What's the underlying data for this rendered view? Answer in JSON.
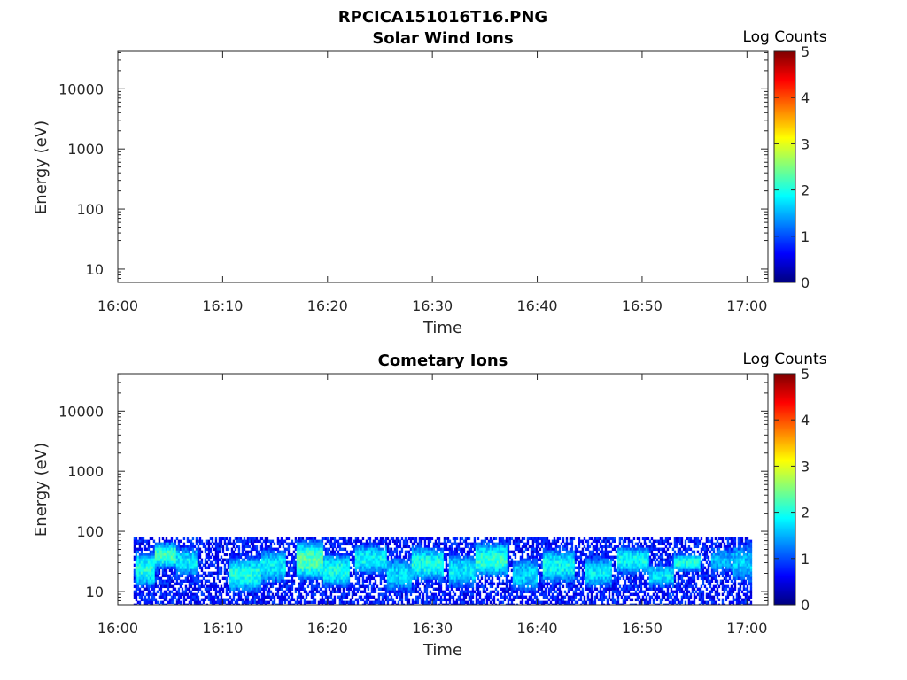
{
  "figure": {
    "filename_title": "RPCICA151016T16.PNG"
  },
  "colormap": {
    "name": "jet",
    "stops": [
      "#00007f",
      "#0000ff",
      "#007fff",
      "#00ffff",
      "#7fff7f",
      "#ffff00",
      "#ff7f00",
      "#ff0000",
      "#7f0000"
    ]
  },
  "chart_data": [
    {
      "type": "heatmap",
      "title": "Solar Wind Ions",
      "xlabel": "Time",
      "ylabel": "Energy (eV)",
      "x_ticks": [
        "16:00",
        "16:10",
        "16:20",
        "16:30",
        "16:40",
        "16:50",
        "17:00"
      ],
      "xlim_minutes": [
        0,
        62
      ],
      "y_scale": "log",
      "y_ticks": [
        "10",
        "100",
        "1000",
        "10000"
      ],
      "ylim": [
        6,
        42000
      ],
      "colorbar": {
        "label": "Log Counts",
        "ticks": [
          "0",
          "1",
          "2",
          "3",
          "4",
          "5"
        ],
        "range": [
          0,
          5
        ]
      },
      "data_present": false,
      "bands": []
    },
    {
      "type": "heatmap",
      "title": "Cometary Ions",
      "xlabel": "Time",
      "ylabel": "Energy (eV)",
      "x_ticks": [
        "16:00",
        "16:10",
        "16:20",
        "16:30",
        "16:40",
        "16:50",
        "17:00"
      ],
      "xlim_minutes": [
        0,
        62
      ],
      "y_scale": "log",
      "y_ticks": [
        "10",
        "100",
        "1000",
        "10000"
      ],
      "ylim": [
        6,
        42000
      ],
      "colorbar": {
        "label": "Log Counts",
        "ticks": [
          "0",
          "1",
          "2",
          "3",
          "4",
          "5"
        ],
        "range": [
          0,
          5
        ]
      },
      "data_present": true,
      "data_time_range_minutes": [
        1.5,
        60.3
      ],
      "data_energy_range_ev": [
        6,
        80
      ],
      "bands": [
        {
          "t": [
            1.5,
            3.5
          ],
          "emin": 12,
          "emax": 50,
          "log_counts": 2.0
        },
        {
          "t": [
            3.5,
            5.5
          ],
          "emin": 25,
          "emax": 70,
          "log_counts": 2.2
        },
        {
          "t": [
            5.5,
            7.5
          ],
          "emin": 18,
          "emax": 60,
          "log_counts": 1.8
        },
        {
          "t": [
            10.5,
            13.5
          ],
          "emin": 10,
          "emax": 40,
          "log_counts": 2.0
        },
        {
          "t": [
            13.5,
            16.0
          ],
          "emin": 14,
          "emax": 55,
          "log_counts": 1.8
        },
        {
          "t": [
            17.0,
            19.5
          ],
          "emin": 16,
          "emax": 75,
          "log_counts": 2.3
        },
        {
          "t": [
            19.5,
            22.0
          ],
          "emin": 12,
          "emax": 45,
          "log_counts": 2.0
        },
        {
          "t": [
            22.5,
            25.5
          ],
          "emin": 20,
          "emax": 65,
          "log_counts": 1.9
        },
        {
          "t": [
            25.5,
            28.0
          ],
          "emin": 10,
          "emax": 40,
          "log_counts": 1.7
        },
        {
          "t": [
            28.0,
            31.0
          ],
          "emin": 15,
          "emax": 60,
          "log_counts": 2.0
        },
        {
          "t": [
            31.5,
            34.0
          ],
          "emin": 12,
          "emax": 45,
          "log_counts": 1.8
        },
        {
          "t": [
            34.0,
            37.0
          ],
          "emin": 18,
          "emax": 70,
          "log_counts": 2.1
        },
        {
          "t": [
            37.5,
            40.0
          ],
          "emin": 10,
          "emax": 40,
          "log_counts": 1.7
        },
        {
          "t": [
            40.5,
            43.5
          ],
          "emin": 14,
          "emax": 55,
          "log_counts": 1.9
        },
        {
          "t": [
            44.5,
            47.0
          ],
          "emin": 12,
          "emax": 40,
          "log_counts": 1.8
        },
        {
          "t": [
            47.5,
            50.5
          ],
          "emin": 20,
          "emax": 60,
          "log_counts": 1.9
        },
        {
          "t": [
            50.5,
            53.0
          ],
          "emin": 12,
          "emax": 30,
          "log_counts": 1.8
        },
        {
          "t": [
            53.0,
            55.5
          ],
          "emin": 22,
          "emax": 45,
          "log_counts": 2.0
        },
        {
          "t": [
            56.5,
            58.5
          ],
          "emin": 20,
          "emax": 60,
          "log_counts": 1.5
        },
        {
          "t": [
            58.5,
            60.3
          ],
          "emin": 14,
          "emax": 70,
          "log_counts": 1.6
        }
      ]
    }
  ]
}
